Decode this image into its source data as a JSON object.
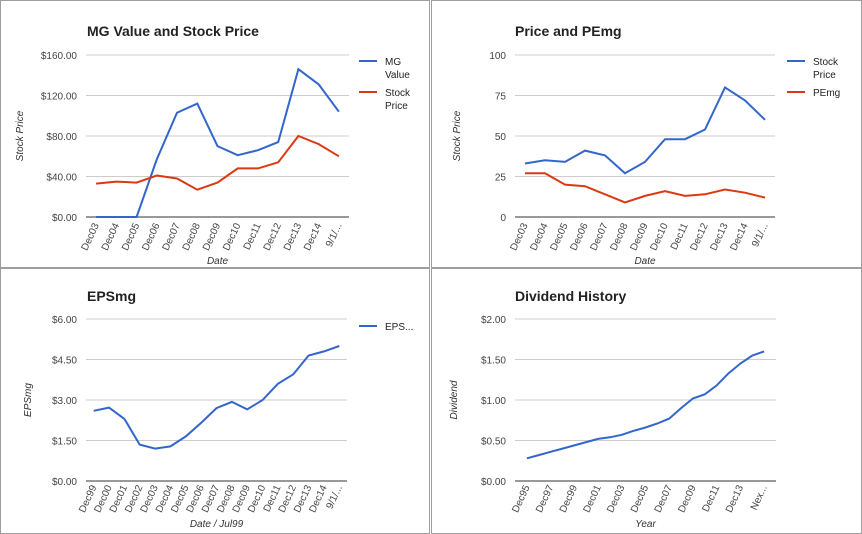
{
  "chart_data": [
    {
      "type": "line",
      "title": "MG Value and Stock Price",
      "xlabel": "Date",
      "ylabel": "Stock Price",
      "ylim": [
        0,
        160
      ],
      "yticks": [
        "$0.00",
        "$40.00",
        "$80.00",
        "$120.00",
        "$160.00"
      ],
      "categories": [
        "Dec03",
        "Dec04",
        "Dec05",
        "Dec06",
        "Dec07",
        "Dec08",
        "Dec09",
        "Dec10",
        "Dec11",
        "Dec12",
        "Dec13",
        "Dec14",
        "9/1/..."
      ],
      "series": [
        {
          "name": "MG Value",
          "color": "#3366cc",
          "values": [
            0,
            0,
            0,
            57,
            103,
            112,
            70,
            61,
            66,
            74,
            146,
            131,
            104
          ]
        },
        {
          "name": "Stock Price",
          "color": "#dc3912",
          "values": [
            33,
            35,
            34,
            41,
            38,
            27,
            34,
            48,
            48,
            54,
            80,
            72,
            60
          ]
        }
      ],
      "legend": "right",
      "grid": true
    },
    {
      "type": "line",
      "title": "Price and PEmg",
      "xlabel": "Date",
      "ylabel": "Stock Price",
      "ylim": [
        0,
        100
      ],
      "yticks": [
        "0",
        "25",
        "50",
        "75",
        "100"
      ],
      "categories": [
        "Dec03",
        "Dec04",
        "Dec05",
        "Dec06",
        "Dec07",
        "Dec08",
        "Dec09",
        "Dec10",
        "Dec11",
        "Dec12",
        "Dec13",
        "Dec14",
        "9/1/..."
      ],
      "series": [
        {
          "name": "Stock Price",
          "color": "#3366cc",
          "values": [
            33,
            35,
            34,
            41,
            38,
            27,
            34,
            48,
            48,
            54,
            80,
            72,
            60
          ]
        },
        {
          "name": "PEmg",
          "color": "#dc3912",
          "values": [
            27,
            27,
            20,
            19,
            14,
            9,
            13,
            16,
            13,
            14,
            17,
            15,
            12
          ]
        }
      ],
      "legend": "right",
      "grid": true
    },
    {
      "type": "line",
      "title": "EPSmg",
      "xlabel": "Date / Jul99",
      "ylabel": "EPSmg",
      "ylim": [
        0,
        6
      ],
      "yticks": [
        "$0.00",
        "$1.50",
        "$3.00",
        "$4.50",
        "$6.00"
      ],
      "categories": [
        "Dec99",
        "Dec00",
        "Dec01",
        "Dec02",
        "Dec03",
        "Dec04",
        "Dec05",
        "Dec06",
        "Dec07",
        "Dec08",
        "Dec09",
        "Dec10",
        "Dec11",
        "Dec12",
        "Dec13",
        "Dec14",
        "9/1/..."
      ],
      "series": [
        {
          "name": "EPS...",
          "color": "#3366cc",
          "values": [
            2.6,
            2.72,
            2.3,
            1.35,
            1.2,
            1.28,
            1.65,
            2.15,
            2.7,
            2.93,
            2.65,
            3.0,
            3.6,
            3.95,
            4.65,
            4.8,
            5.0
          ]
        }
      ],
      "legend": "right",
      "grid": true
    },
    {
      "type": "line",
      "title": "Dividend History",
      "xlabel": "Year",
      "ylabel": "Dividend",
      "ylim": [
        0,
        2
      ],
      "yticks": [
        "$0.00",
        "$0.50",
        "$1.00",
        "$1.50",
        "$2.00"
      ],
      "categories": [
        "Dec95",
        "Dec97",
        "Dec99",
        "Dec01",
        "Dec03",
        "Dec05",
        "Dec07",
        "Dec09",
        "Dec11",
        "Dec13",
        "Nex..."
      ],
      "points": [
        0.28,
        0.32,
        0.36,
        0.4,
        0.44,
        0.48,
        0.52,
        0.54,
        0.57,
        0.62,
        0.66,
        0.71,
        0.77,
        0.9,
        1.02,
        1.07,
        1.18,
        1.33,
        1.45,
        1.55,
        1.6
      ],
      "series": [
        {
          "name": "",
          "color": "#3366cc"
        }
      ],
      "legend": "none",
      "grid": true
    }
  ]
}
